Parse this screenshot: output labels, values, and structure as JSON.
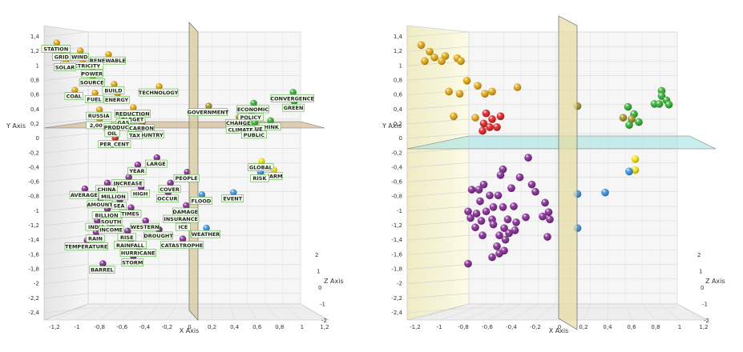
{
  "chart_data": [
    {
      "type": "scatter",
      "dimensions": "3d",
      "xlabel": "X Axis",
      "ylabel": "Y Axis",
      "zlabel": "Z Axis",
      "xlim": [
        -1.2,
        1.2
      ],
      "ylim": [
        -2.4,
        1.4
      ],
      "zlim": [
        -2,
        2
      ],
      "x_ticks": [
        "-1,2",
        "-1",
        "-0,8",
        "-0,6",
        "-0,4",
        "-0,2",
        "0",
        "0,2",
        "0,4",
        "0,6",
        "0,8",
        "1",
        "1,2"
      ],
      "y_ticks": [
        "1,4",
        "1,2",
        "1",
        "0,8",
        "0,6",
        "0,4",
        "0,2",
        "0",
        "-0,2",
        "-0,4",
        "-0,6",
        "-0,8",
        "-1",
        "-1,2",
        "-1,4",
        "-1,6",
        "-1,8",
        "-2",
        "-2,2",
        "-2,4"
      ],
      "z_ticks": [
        "2",
        "1",
        "0",
        "-1",
        "-2"
      ],
      "grid": true,
      "colors": {
        "gold": "#e0a000",
        "darkgold": "#9a8a10",
        "red": "#dd1010",
        "green": "#22aa22",
        "purple": "#7a1a8a",
        "blue": "#2a8adc",
        "yellow": "#f2e200"
      },
      "points": [
        {
          "x": -1.18,
          "y": 1.25,
          "label": "STATION",
          "color": "gold"
        },
        {
          "x": -1.13,
          "y": 1.14,
          "label": "GRID",
          "color": "gold"
        },
        {
          "x": -0.97,
          "y": 1.14,
          "label": "WIND",
          "color": "gold"
        },
        {
          "x": -0.72,
          "y": 1.09,
          "label": "RENEWABLE",
          "color": "gold"
        },
        {
          "x": -1.1,
          "y": 1.0,
          "label": "SOLAR",
          "color": "gold"
        },
        {
          "x": -0.95,
          "y": 1.02,
          "label": "ELECTRICITY",
          "color": "gold"
        },
        {
          "x": -0.86,
          "y": 0.91,
          "label": "POWER",
          "color": "gold"
        },
        {
          "x": -0.86,
          "y": 0.79,
          "label": "SOURCE",
          "color": "gold"
        },
        {
          "x": -0.67,
          "y": 0.68,
          "label": "BUILD",
          "color": "gold"
        },
        {
          "x": -0.27,
          "y": 0.65,
          "label": "TECHNOLOGY",
          "color": "gold"
        },
        {
          "x": -1.02,
          "y": 0.6,
          "label": "COAL",
          "color": "gold"
        },
        {
          "x": -0.84,
          "y": 0.56,
          "label": "FUEL",
          "color": "gold"
        },
        {
          "x": -0.64,
          "y": 0.55,
          "label": "ENERGY",
          "color": "gold"
        },
        {
          "x": -0.8,
          "y": 0.33,
          "label": "RUSSIA",
          "color": "gold"
        },
        {
          "x": -0.5,
          "y": 0.36,
          "label": "REDUCTION",
          "color": "gold"
        },
        {
          "x": -0.5,
          "y": 0.28,
          "label": "TARGET",
          "color": "red"
        },
        {
          "x": -0.58,
          "y": 0.24,
          "label": "GAS",
          "color": "red"
        },
        {
          "x": -0.8,
          "y": 0.2,
          "label": "2,00 €",
          "color": "gold"
        },
        {
          "x": -0.58,
          "y": 0.17,
          "label": "PRODUCTION",
          "color": "gold"
        },
        {
          "x": -0.42,
          "y": 0.16,
          "label": "CARBON",
          "color": "red"
        },
        {
          "x": -0.68,
          "y": 0.09,
          "label": "OIL",
          "color": "red"
        },
        {
          "x": -0.48,
          "y": 0.06,
          "label": "TAX",
          "color": "red"
        },
        {
          "x": -0.35,
          "y": 0.07,
          "label": "COUNTRY",
          "color": "red"
        },
        {
          "x": -0.66,
          "y": -0.06,
          "label": "PER_CENT",
          "color": "red"
        },
        {
          "x": 0.17,
          "y": 0.38,
          "label": "GOVERNMENT",
          "color": "darkgold"
        },
        {
          "x": 0.57,
          "y": 0.42,
          "label": "ECONOMIC",
          "color": "green"
        },
        {
          "x": 0.92,
          "y": 0.57,
          "label": "CONVERGENCE",
          "color": "green"
        },
        {
          "x": 0.93,
          "y": 0.44,
          "label": "GREEN",
          "color": "green"
        },
        {
          "x": 0.55,
          "y": 0.31,
          "label": "POLICY",
          "color": "green"
        },
        {
          "x": 0.44,
          "y": 0.23,
          "label": "CHANGE",
          "color": "darkgold"
        },
        {
          "x": 0.46,
          "y": 0.14,
          "label": "CLIMATE",
          "color": "green"
        },
        {
          "x": 0.58,
          "y": 0.15,
          "label": "ISSUE",
          "color": "green"
        },
        {
          "x": 0.58,
          "y": 0.07,
          "label": "PUBLIC",
          "color": "green"
        },
        {
          "x": 0.72,
          "y": 0.18,
          "label": "THINK",
          "color": "green"
        },
        {
          "x": -0.29,
          "y": -0.33,
          "label": "LARGE",
          "color": "purple"
        },
        {
          "x": -0.46,
          "y": -0.43,
          "label": "YEAR",
          "color": "purple"
        },
        {
          "x": -0.02,
          "y": -0.53,
          "label": "PEOPLE",
          "color": "purple"
        },
        {
          "x": -0.54,
          "y": -0.6,
          "label": "INCREASE",
          "color": "purple"
        },
        {
          "x": -0.17,
          "y": -0.68,
          "label": "COVER",
          "color": "purple"
        },
        {
          "x": -0.73,
          "y": -0.68,
          "label": "CHINA",
          "color": "purple"
        },
        {
          "x": -0.43,
          "y": -0.74,
          "label": "HIGH",
          "color": "purple"
        },
        {
          "x": -0.67,
          "y": -0.78,
          "label": "MILLION",
          "color": "purple"
        },
        {
          "x": -0.93,
          "y": -0.76,
          "label": "AVERAGE",
          "color": "purple"
        },
        {
          "x": -0.19,
          "y": -0.81,
          "label": "OCCUR",
          "color": "purple"
        },
        {
          "x": 0.11,
          "y": -0.84,
          "label": "FLOOD",
          "color": "blue"
        },
        {
          "x": 0.39,
          "y": -0.81,
          "label": "EVENT",
          "color": "blue"
        },
        {
          "x": -0.79,
          "y": -0.89,
          "label": "AMOUNT",
          "color": "purple"
        },
        {
          "x": -0.62,
          "y": -0.91,
          "label": "SEA",
          "color": "purple"
        },
        {
          "x": -0.03,
          "y": -0.99,
          "label": "DAMAGE",
          "color": "purple"
        },
        {
          "x": -0.52,
          "y": -1.02,
          "label": "TIMES",
          "color": "purple"
        },
        {
          "x": -0.73,
          "y": -1.04,
          "label": "BILLION",
          "color": "purple"
        },
        {
          "x": -0.07,
          "y": -1.09,
          "label": "INSURANCE",
          "color": "purple"
        },
        {
          "x": -0.69,
          "y": -1.13,
          "label": "SOUTH",
          "color": "purple"
        },
        {
          "x": -0.82,
          "y": -1.2,
          "label": "INDIA",
          "color": "purple"
        },
        {
          "x": -0.69,
          "y": -1.24,
          "label": "INCOME",
          "color": "purple"
        },
        {
          "x": -0.39,
          "y": -1.2,
          "label": "WESTERN",
          "color": "purple"
        },
        {
          "x": -0.05,
          "y": -1.2,
          "label": "ICE",
          "color": "purple"
        },
        {
          "x": -0.27,
          "y": -1.32,
          "label": "DROUGHT",
          "color": "purple"
        },
        {
          "x": 0.15,
          "y": -1.3,
          "label": "WEATHER",
          "color": "blue"
        },
        {
          "x": -0.83,
          "y": -1.36,
          "label": "RAIN",
          "color": "purple"
        },
        {
          "x": -0.55,
          "y": -1.34,
          "label": "RISE",
          "color": "purple"
        },
        {
          "x": -0.52,
          "y": -1.45,
          "label": "RAINFALL",
          "color": "purple"
        },
        {
          "x": -0.91,
          "y": -1.47,
          "label": "TEMPERATURE",
          "color": "purple"
        },
        {
          "x": -0.06,
          "y": -1.45,
          "label": "CATASTROPHE",
          "color": "purple"
        },
        {
          "x": -0.45,
          "y": -1.56,
          "label": "HURRICANE",
          "color": "purple"
        },
        {
          "x": -0.5,
          "y": -1.69,
          "label": "STORM",
          "color": "purple"
        },
        {
          "x": -0.77,
          "y": -1.79,
          "label": "BARREL",
          "color": "purple"
        },
        {
          "x": 0.64,
          "y": -0.38,
          "label": "GLOBAL",
          "color": "yellow"
        },
        {
          "x": 0.63,
          "y": -0.53,
          "label": "RISK",
          "color": "blue"
        },
        {
          "x": 0.75,
          "y": -0.5,
          "label": "WARM",
          "color": "yellow"
        }
      ]
    },
    {
      "type": "scatter",
      "dimensions": "3d",
      "xlabel": "X Axis",
      "ylabel": "Y Axis",
      "zlabel": "Z Axis",
      "xlim": [
        -1.2,
        1.2
      ],
      "ylim": [
        -2.4,
        1.4
      ],
      "zlim": [
        -2,
        2
      ],
      "x_ticks": [
        "-1,2",
        "-1",
        "-0,8",
        "-0,6",
        "-0,4",
        "-0,2",
        "0",
        "0,2",
        "0,4",
        "0,6",
        "0,8",
        "1",
        "1,2"
      ],
      "y_ticks": [
        "1,4",
        "1,2",
        "1",
        "0,8",
        "0,6",
        "0,4",
        "0,2",
        "0",
        "-0,2",
        "-0,4",
        "-0,6",
        "-0,8",
        "-1",
        "-1,2",
        "-1,4",
        "-1,6",
        "-1,8",
        "-2",
        "-2,2",
        "-2,4"
      ],
      "z_ticks": [
        "2",
        "1",
        "0",
        "-1",
        "-2"
      ],
      "grid": true,
      "colors": {
        "gold": "#e0a000",
        "darkgold": "#9a8a10",
        "red": "#dd1010",
        "green": "#22aa22",
        "purple": "#7a1a8a",
        "blue": "#2a8adc",
        "yellow": "#f2e200"
      },
      "points": [
        {
          "x": -1.15,
          "y": 1.22,
          "color": "gold"
        },
        {
          "x": -1.08,
          "y": 1.13,
          "color": "gold"
        },
        {
          "x": -1.04,
          "y": 1.05,
          "color": "gold"
        },
        {
          "x": -0.95,
          "y": 1.07,
          "color": "gold"
        },
        {
          "x": -0.98,
          "y": 1.0,
          "color": "gold"
        },
        {
          "x": -1.12,
          "y": 1.0,
          "color": "gold"
        },
        {
          "x": -0.85,
          "y": 1.04,
          "color": "gold"
        },
        {
          "x": -0.82,
          "y": 1.0,
          "color": "gold"
        },
        {
          "x": -0.77,
          "y": 0.73,
          "color": "gold"
        },
        {
          "x": -0.68,
          "y": 0.66,
          "color": "gold"
        },
        {
          "x": -0.62,
          "y": 0.55,
          "color": "gold"
        },
        {
          "x": -0.92,
          "y": 0.58,
          "color": "gold"
        },
        {
          "x": -0.83,
          "y": 0.55,
          "color": "gold"
        },
        {
          "x": -0.56,
          "y": 0.58,
          "color": "gold"
        },
        {
          "x": -0.35,
          "y": 0.64,
          "color": "gold"
        },
        {
          "x": -0.88,
          "y": 0.24,
          "color": "gold"
        },
        {
          "x": -0.7,
          "y": 0.22,
          "color": "gold"
        },
        {
          "x": -0.61,
          "y": 0.28,
          "color": "red"
        },
        {
          "x": -0.56,
          "y": 0.2,
          "color": "red"
        },
        {
          "x": -0.49,
          "y": 0.24,
          "color": "red"
        },
        {
          "x": -0.63,
          "y": 0.14,
          "color": "red"
        },
        {
          "x": -0.58,
          "y": 0.09,
          "color": "red"
        },
        {
          "x": -0.64,
          "y": 0.04,
          "color": "red"
        },
        {
          "x": -0.52,
          "y": 0.09,
          "color": "red"
        },
        {
          "x": 0.15,
          "y": 0.38,
          "color": "darkgold"
        },
        {
          "x": 0.57,
          "y": 0.37,
          "color": "green"
        },
        {
          "x": 0.62,
          "y": 0.27,
          "color": "green"
        },
        {
          "x": 0.53,
          "y": 0.22,
          "color": "darkgold"
        },
        {
          "x": 0.6,
          "y": 0.2,
          "color": "darkgold"
        },
        {
          "x": 0.66,
          "y": 0.16,
          "color": "green"
        },
        {
          "x": 0.58,
          "y": 0.12,
          "color": "green"
        },
        {
          "x": 0.79,
          "y": 0.41,
          "color": "green"
        },
        {
          "x": 0.85,
          "y": 0.52,
          "color": "green"
        },
        {
          "x": 0.89,
          "y": 0.46,
          "color": "green"
        },
        {
          "x": 0.91,
          "y": 0.4,
          "color": "green"
        },
        {
          "x": 0.83,
          "y": 0.41,
          "color": "green"
        },
        {
          "x": 0.85,
          "y": 0.59,
          "color": "green"
        },
        {
          "x": -0.26,
          "y": -0.33,
          "color": "purple"
        },
        {
          "x": -0.47,
          "y": -0.49,
          "color": "purple"
        },
        {
          "x": -0.49,
          "y": -0.57,
          "color": "purple"
        },
        {
          "x": -0.33,
          "y": -0.6,
          "color": "purple"
        },
        {
          "x": -0.63,
          "y": -0.7,
          "color": "purple"
        },
        {
          "x": -0.67,
          "y": -0.77,
          "color": "purple"
        },
        {
          "x": -0.58,
          "y": -0.85,
          "color": "purple"
        },
        {
          "x": -0.51,
          "y": -0.85,
          "color": "purple"
        },
        {
          "x": -0.4,
          "y": -0.75,
          "color": "purple"
        },
        {
          "x": -0.23,
          "y": -0.7,
          "color": "purple"
        },
        {
          "x": -0.2,
          "y": -0.8,
          "color": "purple"
        },
        {
          "x": -0.73,
          "y": -0.77,
          "color": "purple"
        },
        {
          "x": -0.66,
          "y": -0.93,
          "color": "purple"
        },
        {
          "x": -0.76,
          "y": -1.07,
          "color": "purple"
        },
        {
          "x": -0.69,
          "y": -1.1,
          "color": "purple"
        },
        {
          "x": -0.61,
          "y": -1.07,
          "color": "purple"
        },
        {
          "x": -0.55,
          "y": -1.01,
          "color": "purple"
        },
        {
          "x": -0.47,
          "y": -1.01,
          "color": "purple"
        },
        {
          "x": -0.38,
          "y": -1.0,
          "color": "purple"
        },
        {
          "x": -0.74,
          "y": -1.16,
          "color": "purple"
        },
        {
          "x": -0.65,
          "y": -1.2,
          "color": "purple"
        },
        {
          "x": -0.56,
          "y": -1.18,
          "color": "purple"
        },
        {
          "x": -0.43,
          "y": -1.18,
          "color": "purple"
        },
        {
          "x": -0.36,
          "y": -1.22,
          "color": "purple"
        },
        {
          "x": -0.28,
          "y": -1.15,
          "color": "purple"
        },
        {
          "x": -0.14,
          "y": -1.14,
          "color": "purple"
        },
        {
          "x": -0.09,
          "y": -1.08,
          "color": "purple"
        },
        {
          "x": -0.12,
          "y": -0.95,
          "color": "purple"
        },
        {
          "x": -0.08,
          "y": -1.18,
          "color": "purple"
        },
        {
          "x": -0.7,
          "y": -1.29,
          "color": "purple"
        },
        {
          "x": -0.55,
          "y": -1.25,
          "color": "purple"
        },
        {
          "x": -0.46,
          "y": -1.3,
          "color": "purple"
        },
        {
          "x": -0.37,
          "y": -1.33,
          "color": "purple"
        },
        {
          "x": -0.64,
          "y": -1.4,
          "color": "purple"
        },
        {
          "x": -0.5,
          "y": -1.4,
          "color": "purple"
        },
        {
          "x": -0.42,
          "y": -1.37,
          "color": "purple"
        },
        {
          "x": -0.45,
          "y": -1.46,
          "color": "purple"
        },
        {
          "x": -0.52,
          "y": -1.55,
          "color": "purple"
        },
        {
          "x": -0.46,
          "y": -1.61,
          "color": "purple"
        },
        {
          "x": -0.5,
          "y": -1.65,
          "color": "purple"
        },
        {
          "x": -0.56,
          "y": -1.7,
          "color": "purple"
        },
        {
          "x": -0.1,
          "y": -1.42,
          "color": "purple"
        },
        {
          "x": -0.76,
          "y": -1.79,
          "color": "purple"
        },
        {
          "x": 0.15,
          "y": -0.83,
          "color": "blue"
        },
        {
          "x": 0.38,
          "y": -0.81,
          "color": "blue"
        },
        {
          "x": 0.15,
          "y": -1.3,
          "color": "blue"
        },
        {
          "x": 0.63,
          "y": -0.35,
          "color": "yellow"
        },
        {
          "x": 0.63,
          "y": -0.5,
          "color": "yellow"
        },
        {
          "x": 0.58,
          "y": -0.52,
          "color": "blue"
        }
      ]
    }
  ]
}
